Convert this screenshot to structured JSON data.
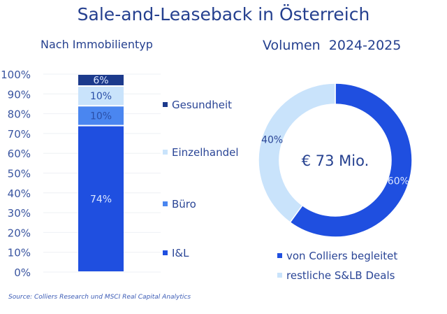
{
  "title": "Sale-and-Leaseback in Österreich",
  "source": "Source: Colliers Research und MSCI Real Capital Analytics",
  "chart_data": [
    {
      "type": "bar",
      "stacked": true,
      "subtitle": "Nach Immobilientyp",
      "yticks": [
        "0%",
        "10%",
        "20%",
        "30%",
        "40%",
        "50%",
        "60%",
        "70%",
        "80%",
        "90%",
        "100%"
      ],
      "ylim": [
        0,
        100
      ],
      "grid": true,
      "legend_placement": "right",
      "series": [
        {
          "name": "I&L",
          "value": 74,
          "label": "74%",
          "color": "#1f4fe0",
          "label_color": "#dbe6ff"
        },
        {
          "name": "Büro",
          "value": 10,
          "label": "10%",
          "color": "#4a86f0",
          "label_color": "#2a4fa8"
        },
        {
          "name": "Einzelhandel",
          "value": 10,
          "label": "10%",
          "color": "#c9e3fb",
          "label_color": "#2a4fa8"
        },
        {
          "name": "Gesundheit",
          "value": 6,
          "label": "6%",
          "color": "#1c3a8c",
          "label_color": "#dbe6ff"
        }
      ]
    },
    {
      "type": "pie",
      "donut": true,
      "subtitle": "Volumen  2024-2025",
      "center_label": "€ 73 Mio.",
      "legend_placement": "bottom",
      "slices": [
        {
          "name": "von Colliers begleitet",
          "value": 60,
          "label": "60%",
          "color": "#1f4fe0"
        },
        {
          "name": "restliche S&LB Deals",
          "value": 40,
          "label": "40%",
          "color": "#c9e3fb"
        }
      ]
    }
  ]
}
